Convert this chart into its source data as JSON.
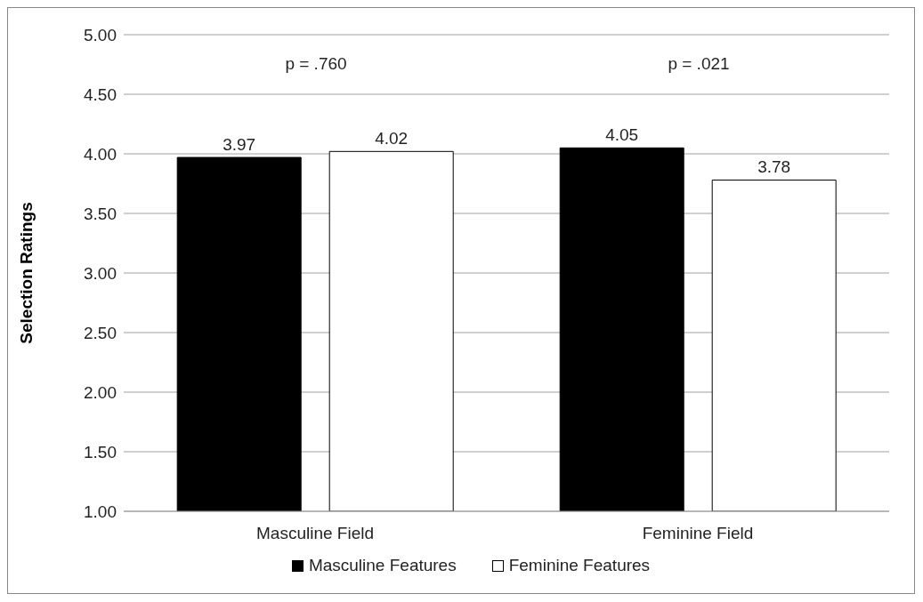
{
  "chart_data": {
    "type": "bar",
    "ylabel": "Selection Ratings",
    "categories": [
      "Masculine Field",
      "Feminine Field"
    ],
    "series": [
      {
        "name": "Masculine Features",
        "color": "#000000",
        "values": [
          3.97,
          4.05
        ]
      },
      {
        "name": "Feminine Features",
        "color": "#ffffff",
        "values": [
          4.02,
          3.78
        ]
      }
    ],
    "ylim": [
      1,
      5
    ],
    "yticks": [
      {
        "value": 1,
        "label": "1.00"
      },
      {
        "value": 1.5,
        "label": "1.50"
      },
      {
        "value": 2,
        "label": "2.00"
      },
      {
        "value": 2.5,
        "label": "2.50"
      },
      {
        "value": 3,
        "label": "3.00"
      },
      {
        "value": 3.5,
        "label": "3.50"
      },
      {
        "value": 4,
        "label": "4.00"
      },
      {
        "value": 4.5,
        "label": "4.50"
      },
      {
        "value": 5,
        "label": "5.00"
      }
    ],
    "annotations": [
      "p = .760",
      "p = .021"
    ],
    "data_labels": true,
    "grid": "y",
    "legend": "bottom"
  }
}
